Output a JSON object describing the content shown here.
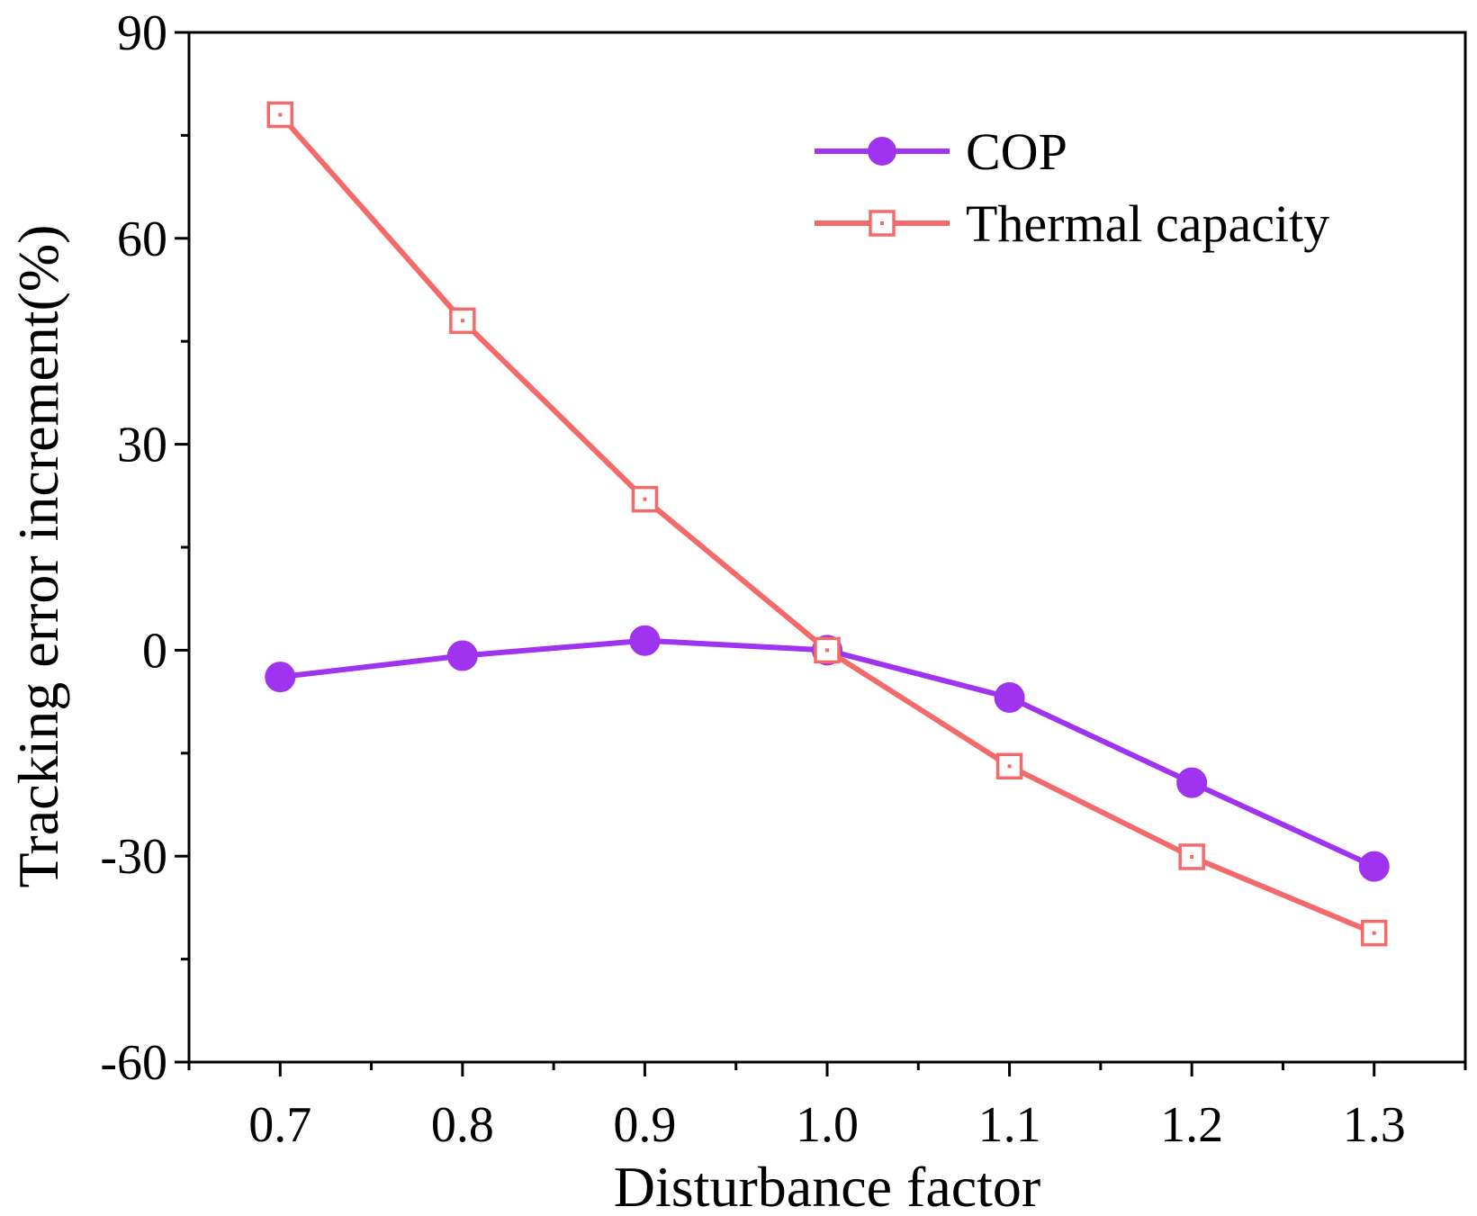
{
  "chart_data": {
    "type": "line",
    "title": "",
    "xlabel": "Disturbance factor",
    "ylabel": "Tracking error increment(%)",
    "x": [
      0.7,
      0.8,
      0.9,
      1.0,
      1.1,
      1.2,
      1.3
    ],
    "x_tick_labels": [
      "0.7",
      "0.8",
      "0.9",
      "1.0",
      "1.1",
      "1.2",
      "1.3"
    ],
    "xlim": [
      0.65,
      1.35
    ],
    "ylim": [
      -60,
      90
    ],
    "y_ticks": [
      -60,
      -30,
      0,
      30,
      60,
      90
    ],
    "y_tick_labels": [
      "-60",
      "-30",
      "0",
      "30",
      "60",
      "90"
    ],
    "grid": false,
    "legend_position": "top-right",
    "series": [
      {
        "name": "COP",
        "values": [
          -3.9,
          -0.8,
          1.4,
          0.0,
          -6.9,
          -19.3,
          -31.5
        ],
        "color": "#a033f0",
        "marker": "filled-circle"
      },
      {
        "name": "Thermal capacity",
        "values": [
          78,
          48,
          22,
          0,
          -16.9,
          -30.1,
          -41.2
        ],
        "color": "#f46a6a",
        "marker": "open-square"
      }
    ]
  }
}
